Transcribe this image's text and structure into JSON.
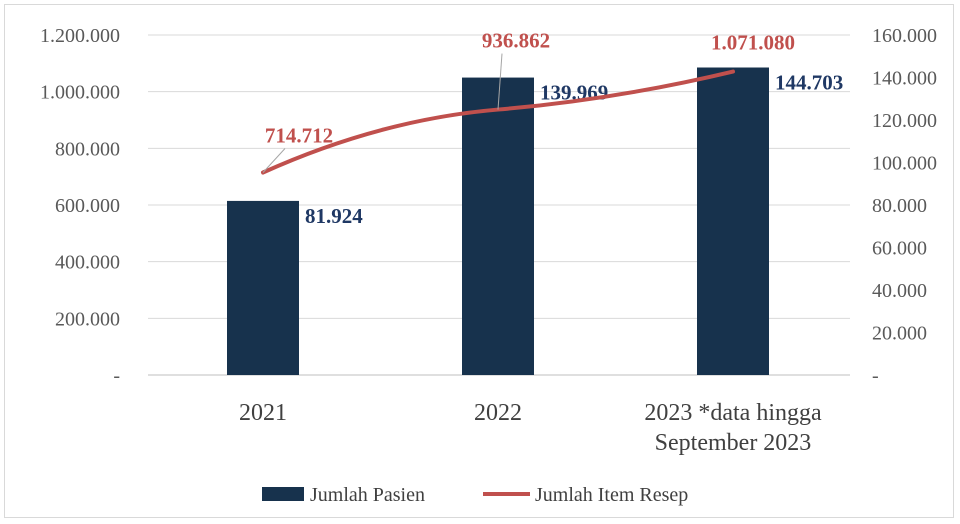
{
  "chart_data": {
    "type": "bar",
    "categories": [
      "2021",
      "2022",
      "2023 *data hingga September 2023"
    ],
    "category_lines": [
      [
        "2021"
      ],
      [
        "2022"
      ],
      [
        "2023 *data hingga",
        "September 2023"
      ]
    ],
    "series": [
      {
        "name": "Jumlah Pasien",
        "type": "bar",
        "axis": "right",
        "values": [
          81924,
          139969,
          144703
        ],
        "labels": [
          "81.924",
          "139.969",
          "144.703"
        ],
        "color": "#17324d"
      },
      {
        "name": "Jumlah Item Resep",
        "type": "line",
        "axis": "left",
        "values": [
          714712,
          936862,
          1071080
        ],
        "labels": [
          "714.712",
          "936.862",
          "1.071.080"
        ],
        "color": "#c0504d"
      }
    ],
    "y_left": {
      "min": 0,
      "max": 1200000,
      "ticks": [
        "-",
        "200.000",
        "400.000",
        "600.000",
        "800.000",
        "1.000.000",
        "1.200.000"
      ]
    },
    "y_right": {
      "min": 0,
      "max": 160000,
      "ticks": [
        "-",
        "20.000",
        "40.000",
        "60.000",
        "80.000",
        "100.000",
        "120.000",
        "140.000",
        "160.000"
      ]
    },
    "grid": true,
    "legend_position": "bottom",
    "legend": [
      "Jumlah Pasien",
      "Jumlah Item Resep"
    ]
  }
}
